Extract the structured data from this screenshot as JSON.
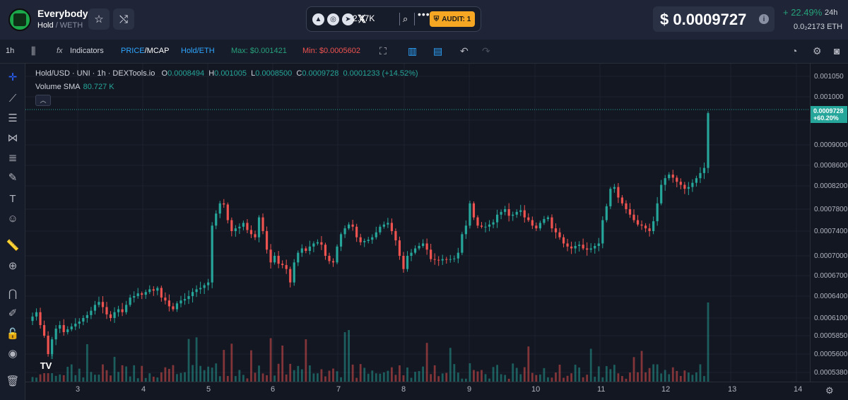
{
  "header": {
    "token_name": "Everybody",
    "pair_base": "Hold",
    "pair_quote": "/ WETH",
    "followers": "2.47K",
    "audit_label": "AUDIT: 1",
    "price": "$ 0.0009727",
    "change": "+ 22.49%",
    "change_period": "24h",
    "eth_price": "0.0₂2173 ETH"
  },
  "toolbar": {
    "interval": "1h",
    "indicators_label": "Indicators",
    "price_label": "PRICE",
    "mcap_label": "/MCAP",
    "pair_label": "Hold/ETH",
    "max_label": "Max: $0.001421",
    "min_label": "Min: $0.0005602"
  },
  "legend": {
    "symbol": "Hold/USD · UNI · 1h · DEXTools.io",
    "o_label": "O",
    "o_value": "0.0008494",
    "h_label": "H",
    "h_value": "0.001005",
    "l_label": "L",
    "l_value": "0.0008500",
    "c_label": "C",
    "c_value": "0.0009728",
    "change": "0.0001233 (+14.52%)",
    "volume_label": "Volume SMA",
    "volume_value": "80.727 K"
  },
  "price_axis": {
    "labels": [
      "0.001050",
      "0.001000",
      "0.0009500",
      "0.0009000",
      "0.0008600",
      "0.0008200",
      "0.0007800",
      "0.0007400",
      "0.0007000",
      "0.0006700",
      "0.0006400",
      "0.0006100",
      "0.0005850",
      "0.0005600",
      "0.0005380"
    ],
    "last_price": "0.0009728",
    "last_change": "+60.20%"
  },
  "time_axis": {
    "labels": [
      "3",
      "4",
      "5",
      "6",
      "7",
      "8",
      "9",
      "10",
      "11",
      "12",
      "13",
      "14"
    ]
  },
  "colors": {
    "up": "#26a69a",
    "down": "#ef5350",
    "accent_blue": "#2962ff",
    "max_green": "#26a17b",
    "min_red": "#ef5350",
    "audit_orange": "#f5a623"
  },
  "chart_data": {
    "type": "candlestick",
    "series": [
      {
        "name": "Hold/USD",
        "x_start_day": 2.4,
        "x_step_hours": 1,
        "closes": [
          0.000612,
          0.000618,
          0.0006,
          0.000585,
          0.00056,
          0.00058,
          0.000595,
          0.0006,
          0.00059,
          0.000594,
          0.000598,
          0.000602,
          0.000605,
          0.00061,
          0.000614,
          0.00062,
          0.000628,
          0.000632,
          0.000625,
          0.000615,
          0.00061,
          0.000618,
          0.000622,
          0.000618,
          0.000628,
          0.000638,
          0.00064,
          0.000644,
          0.000642,
          0.000646,
          0.00065,
          0.000648,
          0.000652,
          0.000638,
          0.000634,
          0.000626,
          0.000622,
          0.00063,
          0.000634,
          0.000636,
          0.00064,
          0.000646,
          0.00065,
          0.000652,
          0.000656,
          0.00066,
          0.00075,
          0.000772,
          0.00079,
          0.000788,
          0.00076,
          0.00074,
          0.000745,
          0.000748,
          0.000755,
          0.000742,
          0.000735,
          0.00073,
          0.000765,
          0.00074,
          0.00071,
          0.00069,
          0.0007,
          0.000688,
          0.000686,
          0.00068,
          0.00066,
          0.00069,
          0.000705,
          0.000712,
          0.000708,
          0.000715,
          0.00072,
          0.000722,
          0.000718,
          0.0007,
          0.000692,
          0.00069,
          0.000715,
          0.000735,
          0.000745,
          0.000752,
          0.000748,
          0.00073,
          0.000722,
          0.000724,
          0.000726,
          0.00073,
          0.000738,
          0.000748,
          0.000752,
          0.000755,
          0.00074,
          0.000725,
          0.0007,
          0.00068,
          0.0007,
          0.000705,
          0.000712,
          0.000716,
          0.00072,
          0.00071,
          0.000695,
          0.000694,
          0.000693,
          0.000695,
          0.000694,
          0.000695,
          0.000696,
          0.000705,
          0.000735,
          0.00075,
          0.00079,
          0.000765,
          0.00075,
          0.000748,
          0.000748,
          0.000752,
          0.000756,
          0.00077,
          0.000775,
          0.00078,
          0.000768,
          0.00077,
          0.000775,
          0.000778,
          0.000765,
          0.00076,
          0.00075,
          0.000745,
          0.000755,
          0.000762,
          0.000765,
          0.000745,
          0.000738,
          0.00073,
          0.00072,
          0.000715,
          0.000712,
          0.000716,
          0.000718,
          0.000712,
          0.00071,
          0.000712,
          0.000716,
          0.00072,
          0.00076,
          0.000785,
          0.000815,
          0.000818,
          0.0008,
          0.00079,
          0.00078,
          0.00077,
          0.00076,
          0.000752,
          0.00075,
          0.000745,
          0.00074,
          0.000758,
          0.00079,
          0.000822,
          0.000835,
          0.000842,
          0.000836,
          0.000828,
          0.000822,
          0.000815,
          0.000818,
          0.000826,
          0.000835,
          0.000845,
          0.000855,
          0.000965
        ],
        "volume_unit": "USD",
        "volume_sma": "80.727K"
      }
    ],
    "title": "Hold/USD · UNI · 1h · DEXTools.io",
    "xlabel": "",
    "ylabel": "",
    "x_ticks": [
      "3",
      "4",
      "5",
      "6",
      "7",
      "8",
      "9",
      "10",
      "11",
      "12",
      "13",
      "14"
    ],
    "y_ticks": [
      "0.001050",
      "0.001000",
      "0.0009500",
      "0.0009000",
      "0.0008600",
      "0.0008200",
      "0.0007800",
      "0.0007400",
      "0.0007000",
      "0.0006700",
      "0.0006400",
      "0.0006100",
      "0.0005850",
      "0.0005600",
      "0.0005380"
    ],
    "grid": true
  }
}
